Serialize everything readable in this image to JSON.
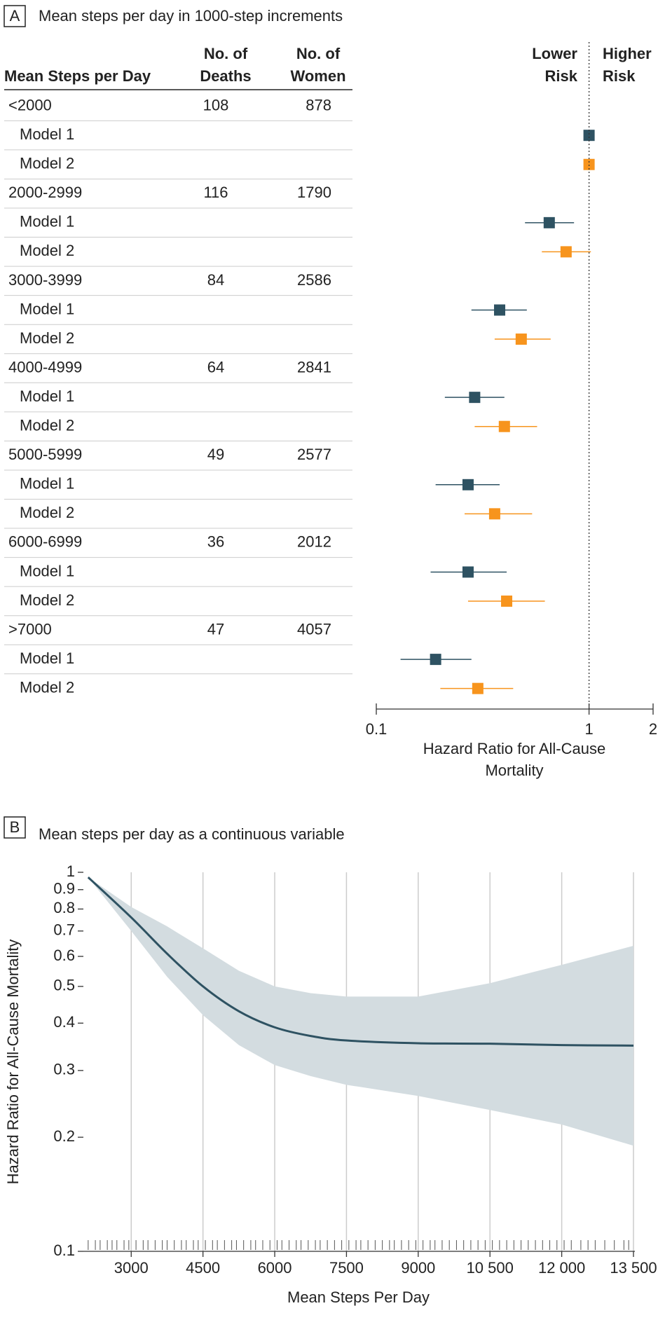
{
  "chart_data": [
    {
      "type": "forest",
      "panel_label": "A",
      "title": "Mean steps per day in 1000-step increments",
      "columns": {
        "label": "Mean Steps per Day",
        "deaths": [
          "No. of",
          "Deaths"
        ],
        "women": [
          "No. of",
          "Women"
        ]
      },
      "direction_labels": {
        "lower": [
          "Lower",
          "Risk"
        ],
        "higher": [
          "Higher",
          "Risk"
        ]
      },
      "reference_line": 1,
      "xlabel": [
        "Hazard Ratio for All-Cause",
        "Mortality"
      ],
      "log_x": true,
      "xlim": [
        0.1,
        2
      ],
      "xticks": [
        0.1,
        1,
        2
      ],
      "colors": [
        "#2e5262",
        "#f7941d"
      ],
      "groups": [
        {
          "label": "<2000",
          "deaths": 108,
          "women": 878,
          "models": [
            {
              "name": "Model 1",
              "hr": 1.0,
              "lo": null,
              "hi": null
            },
            {
              "name": "Model 2",
              "hr": 1.0,
              "lo": null,
              "hi": null
            }
          ]
        },
        {
          "label": "2000-2999",
          "deaths": 116,
          "women": 1790,
          "models": [
            {
              "name": "Model 1",
              "hr": 0.65,
              "lo": 0.5,
              "hi": 0.85
            },
            {
              "name": "Model 2",
              "hr": 0.78,
              "lo": 0.6,
              "hi": 1.02
            }
          ]
        },
        {
          "label": "3000-3999",
          "deaths": 84,
          "women": 2586,
          "models": [
            {
              "name": "Model 1",
              "hr": 0.38,
              "lo": 0.28,
              "hi": 0.51
            },
            {
              "name": "Model 2",
              "hr": 0.48,
              "lo": 0.36,
              "hi": 0.66
            }
          ]
        },
        {
          "label": "4000-4999",
          "deaths": 64,
          "women": 2841,
          "models": [
            {
              "name": "Model 1",
              "hr": 0.29,
              "lo": 0.21,
              "hi": 0.4
            },
            {
              "name": "Model 2",
              "hr": 0.4,
              "lo": 0.29,
              "hi": 0.57
            }
          ]
        },
        {
          "label": "5000-5999",
          "deaths": 49,
          "women": 2577,
          "models": [
            {
              "name": "Model 1",
              "hr": 0.27,
              "lo": 0.19,
              "hi": 0.38
            },
            {
              "name": "Model 2",
              "hr": 0.36,
              "lo": 0.26,
              "hi": 0.54
            }
          ]
        },
        {
          "label": "6000-6999",
          "deaths": 36,
          "women": 2012,
          "models": [
            {
              "name": "Model 1",
              "hr": 0.27,
              "lo": 0.18,
              "hi": 0.41
            },
            {
              "name": "Model 2",
              "hr": 0.41,
              "lo": 0.27,
              "hi": 0.62
            }
          ]
        },
        {
          "label": ">7000",
          "deaths": 47,
          "women": 4057,
          "models": [
            {
              "name": "Model 1",
              "hr": 0.19,
              "lo": 0.13,
              "hi": 0.28
            },
            {
              "name": "Model 2",
              "hr": 0.3,
              "lo": 0.2,
              "hi": 0.44
            }
          ]
        }
      ]
    },
    {
      "type": "line",
      "panel_label": "B",
      "title": "Mean steps per day as a continuous variable",
      "xlabel": "Mean Steps Per Day",
      "ylabel": "Hazard Ratio for All-Cause Mortality",
      "log_y": true,
      "grid": "x",
      "xlim": [
        2000,
        13500
      ],
      "xticks": [
        3000,
        4500,
        6000,
        7500,
        9000,
        {
          "value": 10500,
          "label": "10 500"
        },
        {
          "value": 12000,
          "label": "12 000"
        },
        {
          "value": 13500,
          "label": "13 500"
        }
      ],
      "ylim": [
        0.1,
        1
      ],
      "yticks": [
        0.1,
        0.2,
        0.3,
        0.4,
        0.5,
        0.6,
        0.7,
        0.8,
        0.9,
        1
      ],
      "color": "#2e5262",
      "band_color": "#d3dce0",
      "x": [
        2100,
        3000,
        3750,
        4500,
        5250,
        6000,
        6750,
        7500,
        9000,
        10500,
        12000,
        13500
      ],
      "values": [
        0.97,
        0.76,
        0.61,
        0.5,
        0.43,
        0.39,
        0.37,
        0.36,
        0.354,
        0.353,
        0.35,
        0.349
      ],
      "upper": [
        0.97,
        0.81,
        0.72,
        0.63,
        0.55,
        0.5,
        0.48,
        0.47,
        0.47,
        0.51,
        0.57,
        0.64
      ],
      "lower": [
        0.97,
        0.7,
        0.53,
        0.42,
        0.35,
        0.31,
        0.29,
        0.275,
        0.257,
        0.236,
        0.216,
        0.19
      ],
      "rug": [
        2100,
        2250,
        2350,
        2500,
        2600,
        2700,
        2850,
        2950,
        3100,
        3250,
        3350,
        3500,
        3650,
        3750,
        3900,
        4050,
        4150,
        4300,
        4400,
        4550,
        4700,
        4800,
        4950,
        5100,
        5200,
        5350,
        5500,
        5600,
        5750,
        5900,
        6050,
        6150,
        6300,
        6450,
        6550,
        6700,
        6850,
        6950,
        7100,
        7250,
        7400,
        7550,
        7700,
        7800,
        7950,
        8100,
        8250,
        8400,
        8500,
        8650,
        8800,
        8950,
        9100,
        9250,
        9350,
        9500,
        9650,
        9800,
        9950,
        10100,
        10250,
        10400,
        10550,
        10700,
        10850,
        11000,
        11150,
        11300,
        11450,
        11600,
        11750,
        11900,
        12050,
        12200,
        12400,
        12550,
        12700,
        12900,
        13100,
        13300,
        13400
      ]
    }
  ]
}
